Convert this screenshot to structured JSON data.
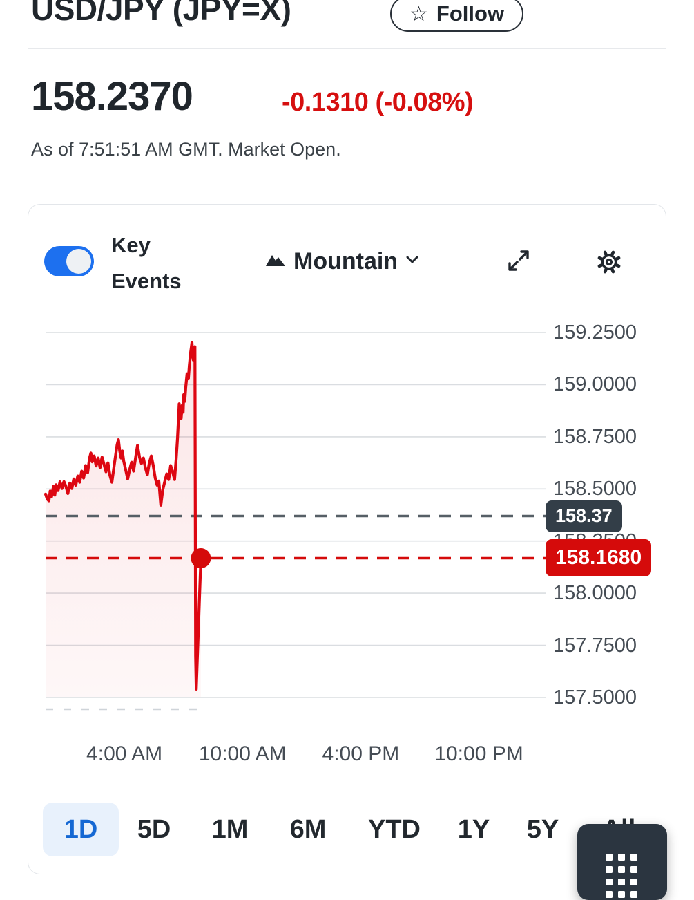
{
  "header": {
    "title": "USD/JPY (JPY=X)",
    "follow_label": "Follow"
  },
  "quote": {
    "price": "158.2370",
    "change": "-0.1310 (-0.08%)",
    "as_of": "As of 7:51:51 AM GMT. Market Open."
  },
  "toolbar": {
    "key_events_label": "Key Events",
    "chart_type_label": "Mountain"
  },
  "icons": {
    "follow": "star-icon",
    "chart_type": "mountain-icon",
    "dropdown": "chevron-down-icon",
    "expand": "expand-icon",
    "settings": "gear-icon",
    "apps": "apps-grid-icon"
  },
  "ranges": [
    {
      "label": "1D",
      "selected": true
    },
    {
      "label": "5D",
      "selected": false
    },
    {
      "label": "1M",
      "selected": false
    },
    {
      "label": "6M",
      "selected": false
    },
    {
      "label": "YTD",
      "selected": false
    },
    {
      "label": "1Y",
      "selected": false
    },
    {
      "label": "5Y",
      "selected": false
    },
    {
      "label": "All",
      "selected": false
    }
  ],
  "colors": {
    "accent_blue": "#1d70ef",
    "selected_range_bg": "#e8f1fc",
    "selected_range_text": "#1568d3",
    "negative_red": "#d60f0f",
    "line_red": "#dd0712",
    "fill_pink": "rgba(221,7,18,0.10)",
    "fill_pink_fade": "rgba(221,7,18,0.03)",
    "badge_dark": "#333e48",
    "badge_red": "#d50b0b",
    "gridline": "#dadde1",
    "prev_close_dash": "#565f66",
    "axis_text": "#454c54"
  },
  "chart_data": {
    "type": "area",
    "series": [
      {
        "name": "USD/JPY",
        "points": [
          [
            0,
            158.475
          ],
          [
            5,
            158.452
          ],
          [
            10,
            158.443
          ],
          [
            14,
            158.49
          ],
          [
            18,
            158.462
          ],
          [
            24,
            158.512
          ],
          [
            28,
            158.47
          ],
          [
            32,
            158.52
          ],
          [
            38,
            158.492
          ],
          [
            44,
            158.534
          ],
          [
            50,
            158.502
          ],
          [
            56,
            158.535
          ],
          [
            62,
            158.512
          ],
          [
            68,
            158.478
          ],
          [
            74,
            158.528
          ],
          [
            80,
            158.502
          ],
          [
            86,
            158.548
          ],
          [
            92,
            158.518
          ],
          [
            98,
            158.562
          ],
          [
            104,
            158.532
          ],
          [
            110,
            158.585
          ],
          [
            116,
            158.552
          ],
          [
            122,
            158.612
          ],
          [
            128,
            158.578
          ],
          [
            134,
            158.648
          ],
          [
            138,
            158.672
          ],
          [
            142,
            158.63
          ],
          [
            148,
            158.658
          ],
          [
            154,
            158.61
          ],
          [
            160,
            158.648
          ],
          [
            166,
            158.602
          ],
          [
            172,
            158.652
          ],
          [
            178,
            158.618
          ],
          [
            184,
            158.582
          ],
          [
            190,
            158.625
          ],
          [
            196,
            158.565
          ],
          [
            202,
            158.532
          ],
          [
            208,
            158.602
          ],
          [
            214,
            158.668
          ],
          [
            218,
            158.712
          ],
          [
            222,
            158.736
          ],
          [
            226,
            158.682
          ],
          [
            230,
            158.648
          ],
          [
            234,
            158.682
          ],
          [
            238,
            158.634
          ],
          [
            244,
            158.592
          ],
          [
            250,
            158.548
          ],
          [
            256,
            158.592
          ],
          [
            262,
            158.628
          ],
          [
            268,
            158.585
          ],
          [
            274,
            158.648
          ],
          [
            280,
            158.708
          ],
          [
            286,
            158.652
          ],
          [
            292,
            158.622
          ],
          [
            298,
            158.648
          ],
          [
            304,
            158.602
          ],
          [
            310,
            158.568
          ],
          [
            316,
            158.625
          ],
          [
            322,
            158.658
          ],
          [
            328,
            158.612
          ],
          [
            334,
            158.552
          ],
          [
            340,
            158.518
          ],
          [
            345,
            158.538
          ],
          [
            351,
            158.422
          ],
          [
            357,
            158.495
          ],
          [
            363,
            158.535
          ],
          [
            369,
            158.572
          ],
          [
            375,
            158.545
          ],
          [
            381,
            158.612
          ],
          [
            387,
            158.582
          ],
          [
            393,
            158.545
          ],
          [
            398,
            158.648
          ],
          [
            402,
            158.745
          ],
          [
            405,
            158.838
          ],
          [
            407,
            158.908
          ],
          [
            409,
            158.856
          ],
          [
            411,
            158.89
          ],
          [
            413,
            158.838
          ],
          [
            416,
            158.9
          ],
          [
            419,
            158.868
          ],
          [
            421,
            158.952
          ],
          [
            424,
            158.92
          ],
          [
            427,
            158.988
          ],
          [
            431,
            159.052
          ],
          [
            435,
            159.028
          ],
          [
            438,
            159.092
          ],
          [
            442,
            159.155
          ],
          [
            446,
            159.202
          ],
          [
            448,
            159.145
          ],
          [
            450,
            159.118
          ],
          [
            452,
            159.172
          ],
          [
            455,
            159.182
          ],
          [
            457,
            157.7
          ],
          [
            459,
            157.54
          ],
          [
            473,
            158.168
          ]
        ]
      }
    ],
    "xlim_minutes": [
      0,
      1525
    ],
    "ylim": [
      157.5,
      159.25
    ],
    "grid": true,
    "xticks": [
      {
        "t": 240,
        "label": "4:00 AM"
      },
      {
        "t": 600,
        "label": "10:00 AM"
      },
      {
        "t": 960,
        "label": "4:00 PM"
      },
      {
        "t": 1320,
        "label": "10:00 PM"
      }
    ],
    "yticks": [
      {
        "v": 159.25,
        "label": "159.2500"
      },
      {
        "v": 159.0,
        "label": "159.0000"
      },
      {
        "v": 158.75,
        "label": "158.7500"
      },
      {
        "v": 158.5,
        "label": "158.5000"
      },
      {
        "v": 158.25,
        "label": "158.2500"
      },
      {
        "v": 158.0,
        "label": "158.0000"
      },
      {
        "v": 157.75,
        "label": "157.7500"
      },
      {
        "v": 157.5,
        "label": "157.5000"
      }
    ],
    "previous_close": {
      "value": 158.37,
      "label": "158.37"
    },
    "current": {
      "value": 158.168,
      "label": "158.1680"
    }
  }
}
